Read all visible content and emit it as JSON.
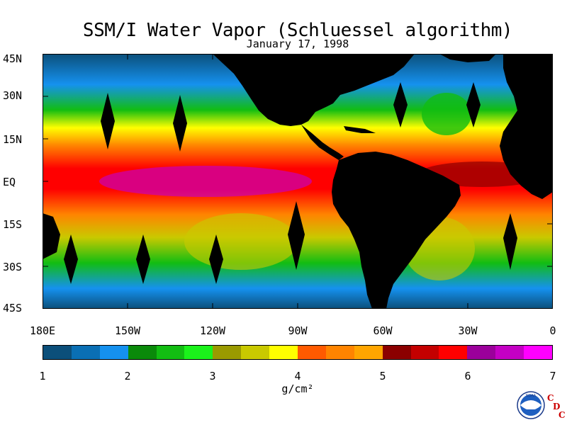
{
  "title": "SSM/I Water Vapor (Schluessel algorithm)",
  "subtitle": "January 17, 1998",
  "latitude_labels": [
    "45N",
    "30N",
    "15N",
    "EQ",
    "15S",
    "30S",
    "45S"
  ],
  "longitude_labels": [
    "180E",
    "150W",
    "120W",
    "90W",
    "60W",
    "30W",
    "0"
  ],
  "colorbar": {
    "tick_labels": [
      "1",
      "2",
      "3",
      "4",
      "5",
      "6",
      "7"
    ],
    "unit": "g/cm²",
    "colors": [
      "#0b4f7a",
      "#0a6fb4",
      "#1591ef",
      "#0a8a0a",
      "#12bd12",
      "#1bf21b",
      "#9a9a00",
      "#c9c900",
      "#ffff00",
      "#ff5a00",
      "#ff8400",
      "#ffa500",
      "#8b0000",
      "#c40000",
      "#ff0000",
      "#9b009b",
      "#c400c4",
      "#ff00ff"
    ]
  },
  "logo": {
    "icon": "noaa-logo-icon",
    "text": "NOAA",
    "letters": [
      "C",
      "D",
      "C"
    ]
  },
  "gap_color": "#000000",
  "land_color": "#000000"
}
